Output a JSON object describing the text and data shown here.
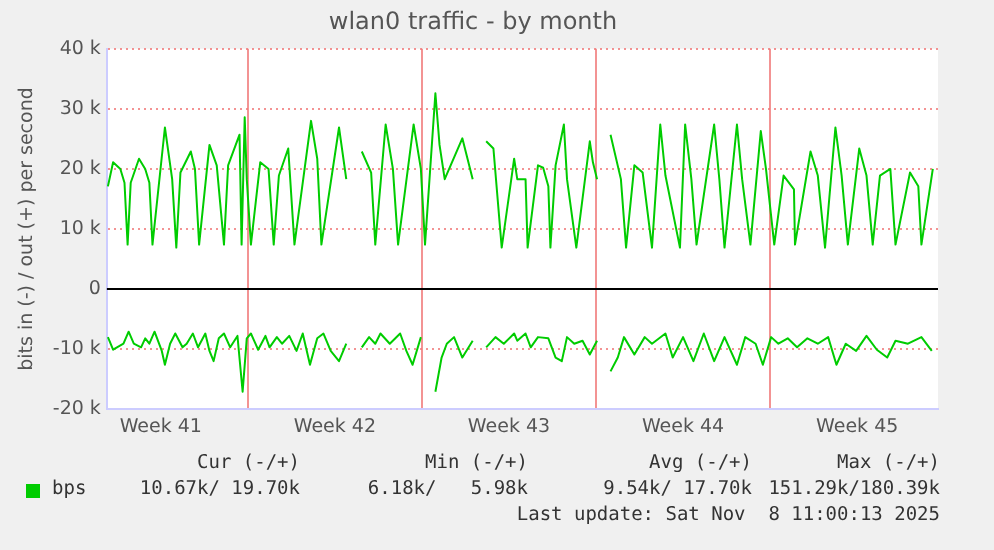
{
  "chart_data": {
    "type": "line",
    "title": "wlan0 traffic - by month",
    "ylabel": "bits in (-) / out (+) per second",
    "xlim": [
      "2025-10-07T08:00",
      "2025-11-09T18:00"
    ],
    "xticks": [
      {
        "value": "2025-10-09T12:00",
        "label": "Week 41"
      },
      {
        "value": "2025-10-13T00:00",
        "label": null
      },
      {
        "value": "2025-10-16T12:00",
        "label": "Week 42"
      },
      {
        "value": "2025-10-20T00:00",
        "label": null
      },
      {
        "value": "2025-10-23T12:00",
        "label": "Week 43"
      },
      {
        "value": "2025-10-27T00:00",
        "label": null
      },
      {
        "value": "2025-10-30T12:00",
        "label": "Week 44"
      },
      {
        "value": "2025-11-03T00:00",
        "label": null
      },
      {
        "value": "2025-11-06T12:00",
        "label": "Week 45"
      }
    ],
    "ylim": [
      -20000,
      40000
    ],
    "yticks": [
      {
        "value": -20000,
        "label": "-20 k"
      },
      {
        "value": -10000,
        "label": "-10 k"
      },
      {
        "value": 0,
        "label": "0"
      },
      {
        "value": 10000,
        "label": "10 k"
      },
      {
        "value": 20000,
        "label": "20 k"
      },
      {
        "value": 30000,
        "label": "30 k"
      },
      {
        "value": 40000,
        "label": "40 k"
      }
    ],
    "grid": true,
    "legend": "bottom",
    "marker": "none",
    "line_style": "solid",
    "ref_lines": [
      {
        "axis": "y",
        "value": 0,
        "color": "#000000"
      }
    ],
    "series": [
      {
        "name": "bps",
        "color": "#00cc00",
        "x": [
          "2025-10-07T09:00",
          "2025-10-07T14:00",
          "2025-10-07T21:00",
          "2025-10-08T01:00",
          "2025-10-08T04:00",
          "2025-10-08T07:00",
          "2025-10-08T15:00",
          "2025-10-08T21:00",
          "2025-10-09T01:00",
          "2025-10-09T04:00",
          "2025-10-09T16:00",
          "2025-10-09T23:00",
          "2025-10-10T03:00",
          "2025-10-10T07:00",
          "2025-10-10T17:00",
          "2025-10-10T21:00",
          "2025-10-11T01:00",
          "2025-10-11T11:00",
          "2025-10-11T18:00",
          "2025-10-12T01:00",
          "2025-10-12T05:00",
          "2025-10-12T16:00",
          "2025-10-12T18:00",
          "2025-10-12T21:00",
          "2025-10-12T23:00",
          "2025-10-13T03:00",
          "2025-10-13T12:00",
          "2025-10-13T20:00",
          "2025-10-14T01:00",
          "2025-10-14T06:00",
          "2025-10-14T15:00",
          "2025-10-14T21:00",
          "2025-10-15T13:00",
          "2025-10-15T19:00",
          "2025-10-15T23:00",
          "2025-10-16T16:00",
          "2025-10-16T23:00",
          "2025-10-17T03:00",
          "2025-10-17T14:00",
          "2025-10-17T23:00",
          "2025-10-18T03:00",
          "2025-10-18T13:00",
          "2025-10-18T20:00",
          "2025-10-19T01:00",
          "2025-10-19T16:00",
          "2025-10-19T23:00",
          "2025-10-20T03:00",
          "2025-10-20T13:00",
          "2025-10-20T17:00",
          "2025-10-20T22:00",
          "2025-10-21T15:00",
          "2025-10-22T01:00",
          "2025-10-22T08:00",
          "2025-10-22T14:00",
          "2025-10-22T21:00",
          "2025-10-23T05:00",
          "2025-10-23T17:00",
          "2025-10-23T20:00",
          "2025-10-24T04:00",
          "2025-10-24T06:00",
          "2025-10-24T16:00",
          "2025-10-24T21:00",
          "2025-10-25T02:00",
          "2025-10-25T04:00",
          "2025-10-25T09:00",
          "2025-10-25T17:00",
          "2025-10-25T20:00",
          "2025-10-26T05:00",
          "2025-10-26T18:00",
          "2025-10-26T21:00",
          "2025-10-27T01:00",
          "2025-10-27T06:00",
          "2025-10-27T14:00",
          "2025-10-28T00:00",
          "2025-10-28T05:00",
          "2025-10-28T13:00",
          "2025-10-28T21:00",
          "2025-10-29T06:00",
          "2025-10-29T14:00",
          "2025-10-29T19:00",
          "2025-10-30T09:00",
          "2025-10-30T14:00",
          "2025-10-30T20:00",
          "2025-10-31T01:00",
          "2025-10-31T18:00",
          "2025-10-31T23:00",
          "2025-11-01T04:00",
          "2025-11-01T16:00",
          "2025-11-01T21:00",
          "2025-11-02T05:00",
          "2025-11-02T15:00",
          "2025-11-02T20:00",
          "2025-11-03T04:00",
          "2025-11-03T13:00",
          "2025-11-03T23:00",
          "2025-11-04T00:00",
          "2025-11-04T15:00",
          "2025-11-04T22:00",
          "2025-11-05T05:00",
          "2025-11-05T15:00",
          "2025-11-05T21:00",
          "2025-11-06T03:00",
          "2025-11-06T14:00",
          "2025-11-06T21:00",
          "2025-11-07T03:00",
          "2025-11-07T10:00",
          "2025-11-07T20:00",
          "2025-11-08T01:00",
          "2025-11-08T15:00",
          "2025-11-08T23:00",
          "2025-11-09T02:00",
          "2025-11-09T13:00"
        ],
        "values": [
          17100,
          21100,
          20000,
          17700,
          7400,
          17700,
          21700,
          20000,
          17700,
          7400,
          26900,
          18300,
          6900,
          19400,
          22900,
          20000,
          7400,
          24000,
          20600,
          7400,
          20600,
          25700,
          7400,
          28600,
          18300,
          7400,
          21100,
          20000,
          7400,
          18900,
          23400,
          7400,
          28000,
          21700,
          7400,
          26900,
          18300,
          null,
          22900,
          19400,
          7400,
          27400,
          20000,
          7400,
          27400,
          20000,
          7400,
          32600,
          24000,
          18300,
          25100,
          18300,
          null,
          24600,
          23400,
          6900,
          21700,
          18300,
          18300,
          6900,
          20600,
          20200,
          17100,
          6900,
          20600,
          27400,
          18300,
          6900,
          24600,
          21100,
          18300,
          null,
          25700,
          18300,
          6900,
          20600,
          19400,
          6900,
          27400,
          18900,
          6900,
          27400,
          18300,
          7400,
          27400,
          18300,
          6900,
          27400,
          18300,
          7400,
          26300,
          20000,
          7400,
          18900,
          16600,
          7400,
          22900,
          18900,
          6900,
          26900,
          18900,
          7400,
          23400,
          18900,
          7400,
          18900,
          20000,
          7400,
          19400,
          17100,
          7400,
          20000
        ]
      },
      {
        "color": "#00cc00",
        "x": [
          "2025-10-07T09:00",
          "2025-10-07T14:00",
          "2025-10-08T00:00",
          "2025-10-08T05:00",
          "2025-10-08T10:00",
          "2025-10-08T17:00",
          "2025-10-08T21:00",
          "2025-10-09T01:00",
          "2025-10-09T06:00",
          "2025-10-09T13:00",
          "2025-10-09T16:00",
          "2025-10-09T21:00",
          "2025-10-10T02:00",
          "2025-10-10T09:00",
          "2025-10-10T13:00",
          "2025-10-10T19:00",
          "2025-10-11T00:00",
          "2025-10-11T07:00",
          "2025-10-11T11:00",
          "2025-10-11T15:00",
          "2025-10-11T20:00",
          "2025-10-12T01:00",
          "2025-10-12T07:00",
          "2025-10-12T14:00",
          "2025-10-12T19:00",
          "2025-10-12T23:00",
          "2025-10-13T03:00",
          "2025-10-13T10:00",
          "2025-10-13T17:00",
          "2025-10-13T21:00",
          "2025-10-14T04:00",
          "2025-10-14T09:00",
          "2025-10-14T16:00",
          "2025-10-14T23:00",
          "2025-10-15T05:00",
          "2025-10-15T12:00",
          "2025-10-15T19:00",
          "2025-10-16T01:00",
          "2025-10-16T08:00",
          "2025-10-16T16:00",
          "2025-10-16T23:00",
          "2025-10-17T03:00",
          "2025-10-17T14:00",
          "2025-10-17T21:00",
          "2025-10-18T03:00",
          "2025-10-18T08:00",
          "2025-10-18T17:00",
          "2025-10-19T03:00",
          "2025-10-19T09:00",
          "2025-10-19T15:00",
          "2025-10-19T23:00",
          "2025-10-20T06:00",
          "2025-10-20T13:00",
          "2025-10-20T19:00",
          "2025-10-21T00:00",
          "2025-10-21T07:00",
          "2025-10-21T15:00",
          "2025-10-22T01:00",
          "2025-10-22T08:00",
          "2025-10-22T14:00",
          "2025-10-22T23:00",
          "2025-10-23T07:00",
          "2025-10-23T17:00",
          "2025-10-23T20:00",
          "2025-10-24T04:00",
          "2025-10-24T09:00",
          "2025-10-24T16:00",
          "2025-10-25T02:00",
          "2025-10-25T09:00",
          "2025-10-25T15:00",
          "2025-10-25T20:00",
          "2025-10-26T03:00",
          "2025-10-26T11:00",
          "2025-10-26T18:00",
          "2025-10-27T01:00",
          "2025-10-27T06:00",
          "2025-10-27T14:00",
          "2025-10-27T21:00",
          "2025-10-28T03:00",
          "2025-10-28T13:00",
          "2025-10-28T23:00",
          "2025-10-29T06:00",
          "2025-10-29T19:00",
          "2025-10-30T02:00",
          "2025-10-30T12:00",
          "2025-10-30T22:00",
          "2025-10-31T08:00",
          "2025-10-31T18:00",
          "2025-11-01T04:00",
          "2025-11-01T16:00",
          "2025-11-02T00:00",
          "2025-11-02T10:00",
          "2025-11-02T17:00",
          "2025-11-03T01:00",
          "2025-11-03T08:00",
          "2025-11-03T17:00",
          "2025-11-04T02:00",
          "2025-11-04T12:00",
          "2025-11-04T22:00",
          "2025-11-05T08:00",
          "2025-11-05T16:00",
          "2025-11-06T01:00",
          "2025-11-06T11:00",
          "2025-11-06T21:00",
          "2025-11-07T07:00",
          "2025-11-07T17:00",
          "2025-11-08T01:00",
          "2025-11-08T13:00",
          "2025-11-09T02:00",
          "2025-11-09T12:00"
        ],
        "values": [
          -8000,
          -10100,
          -9100,
          -7100,
          -9100,
          -9700,
          -8200,
          -9100,
          -7100,
          -10300,
          -12600,
          -9100,
          -7400,
          -9700,
          -9100,
          -7400,
          -9700,
          -7400,
          -10300,
          -12000,
          -8200,
          -7400,
          -9700,
          -7800,
          -17100,
          -8200,
          -7400,
          -10100,
          -7800,
          -9700,
          -8000,
          -9100,
          -7800,
          -10300,
          -7400,
          -12600,
          -8200,
          -7400,
          -10300,
          -12000,
          -9100,
          null,
          -9700,
          -8000,
          -9100,
          -7400,
          -9100,
          -7400,
          -10300,
          -12600,
          -8000,
          null,
          -17100,
          -11400,
          -9100,
          -8000,
          -11400,
          -8600,
          null,
          -9700,
          -8000,
          -9100,
          -7400,
          -8600,
          -7400,
          -9700,
          -8000,
          -8200,
          -11400,
          -12000,
          -8000,
          -9100,
          -8600,
          -10900,
          -8600,
          null,
          -13700,
          -11400,
          -8000,
          -10900,
          -8000,
          -9100,
          -7400,
          -11400,
          -8000,
          -12000,
          -7400,
          -12000,
          -8000,
          -12600,
          -8000,
          -9100,
          -12600,
          -8000,
          -9100,
          -8200,
          -9700,
          -8200,
          -9100,
          -8000,
          -12600,
          -9100,
          -10300,
          -7800,
          -10100,
          -11400,
          -8600,
          -9100,
          -8000,
          -10300
        ]
      }
    ],
    "annotations": [
      "Cur (-/+)",
      "Min (-/+)",
      "Avg (-/+)",
      "Max (-/+)",
      "10.67k/ 19.70k",
      "6.18k/   5.98k",
      "9.54k/ 17.70k",
      "151.29k/180.39k",
      "Last update: Sat Nov  8 11:00:13 2025"
    ]
  }
}
